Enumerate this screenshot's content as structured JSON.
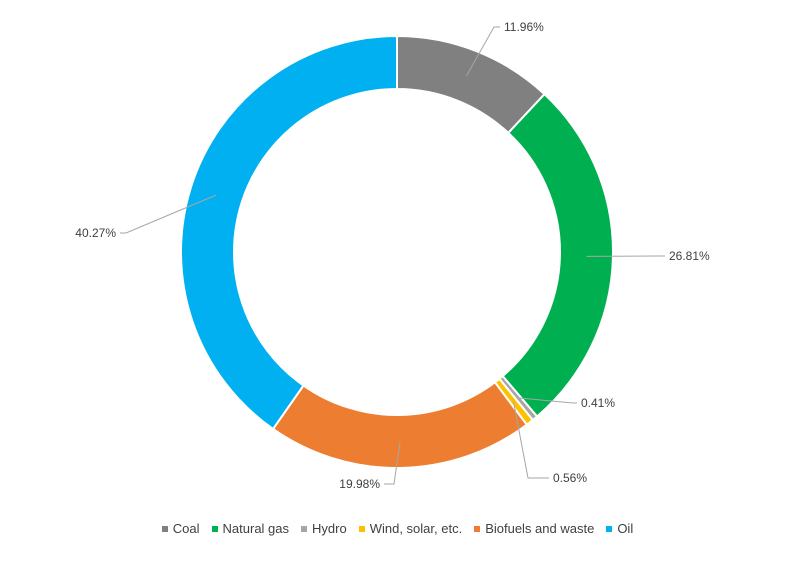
{
  "chart_data": {
    "type": "pie",
    "variant": "donut",
    "title": "",
    "legend_position": "bottom",
    "slices": [
      {
        "name": "Coal",
        "value": 11.96,
        "label": "11.96%",
        "color": "#808080"
      },
      {
        "name": "Natural gas",
        "value": 26.81,
        "label": "26.81%",
        "color": "#00B050"
      },
      {
        "name": "Hydro",
        "value": 0.41,
        "label": "0.41%",
        "color": "#A6A6A6"
      },
      {
        "name": "Wind, solar, etc.",
        "value": 0.56,
        "label": "0.56%",
        "color": "#FFC000"
      },
      {
        "name": "Biofuels and waste",
        "value": 19.98,
        "label": "19.98%",
        "color": "#ED7D31"
      },
      {
        "name": "Oil",
        "value": 40.27,
        "label": "40.27%",
        "color": "#00B0F0"
      }
    ]
  }
}
